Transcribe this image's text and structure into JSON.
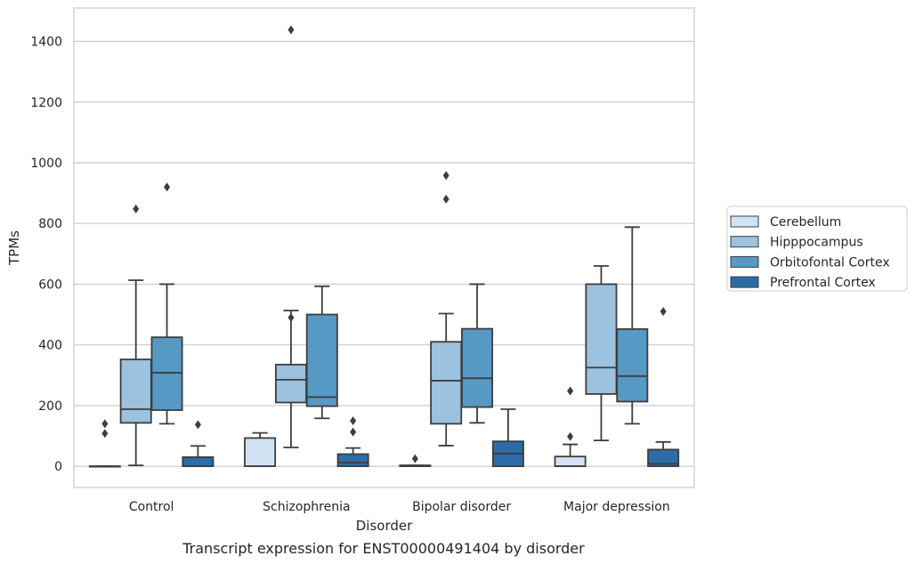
{
  "chart_data": {
    "type": "boxplot",
    "xlabel": "Disorder",
    "ylabel": "TPMs",
    "caption": "Transcript expression for ENST00000491404 by disorder",
    "ylim": [
      -70,
      1510
    ],
    "yticks": [
      0,
      200,
      400,
      600,
      800,
      1000,
      1200,
      1400
    ],
    "grid": "horizontal",
    "legend_position": "right",
    "categories": [
      "Control",
      "Schizophrenia",
      "Bipolar disorder",
      "Major depression"
    ],
    "series": [
      {
        "name": "Cerebellum",
        "color": "#d1e2f2",
        "boxes": [
          {
            "whisker_low": 0,
            "q1": 0,
            "median": 0,
            "q3": 0,
            "whisker_high": 0,
            "outliers": [
              140,
              108
            ]
          },
          {
            "whisker_low": 0,
            "q1": 0,
            "median": 0,
            "q3": 93,
            "whisker_high": 110,
            "outliers": []
          },
          {
            "whisker_low": 0,
            "q1": 0,
            "median": 0,
            "q3": 3,
            "whisker_high": 3,
            "outliers": [
              25
            ]
          },
          {
            "whisker_low": 0,
            "q1": 0,
            "median": 0,
            "q3": 32,
            "whisker_high": 72,
            "outliers": [
              248,
              98
            ]
          }
        ]
      },
      {
        "name": "Hipppocampus",
        "color": "#9bc2de",
        "boxes": [
          {
            "whisker_low": 3,
            "q1": 143,
            "median": 188,
            "q3": 352,
            "whisker_high": 613,
            "outliers": [
              848
            ]
          },
          {
            "whisker_low": 62,
            "q1": 210,
            "median": 285,
            "q3": 335,
            "whisker_high": 513,
            "outliers": [
              490,
              1438
            ]
          },
          {
            "whisker_low": 68,
            "q1": 140,
            "median": 282,
            "q3": 410,
            "whisker_high": 503,
            "outliers": [
              958,
              880
            ]
          },
          {
            "whisker_low": 85,
            "q1": 238,
            "median": 325,
            "q3": 600,
            "whisker_high": 660,
            "outliers": []
          }
        ]
      },
      {
        "name": "Orbitofontal Cortex",
        "color": "#5699c5",
        "boxes": [
          {
            "whisker_low": 140,
            "q1": 185,
            "median": 308,
            "q3": 425,
            "whisker_high": 600,
            "outliers": [
              920
            ]
          },
          {
            "whisker_low": 158,
            "q1": 198,
            "median": 228,
            "q3": 500,
            "whisker_high": 593,
            "outliers": []
          },
          {
            "whisker_low": 143,
            "q1": 195,
            "median": 290,
            "q3": 453,
            "whisker_high": 600,
            "outliers": []
          },
          {
            "whisker_low": 140,
            "q1": 213,
            "median": 297,
            "q3": 452,
            "whisker_high": 788,
            "outliers": []
          }
        ]
      },
      {
        "name": "Prefrontal Cortex",
        "color": "#2c6ca8",
        "boxes": [
          {
            "whisker_low": 0,
            "q1": 0,
            "median": 0,
            "q3": 30,
            "whisker_high": 67,
            "outliers": [
              137
            ]
          },
          {
            "whisker_low": 0,
            "q1": 0,
            "median": 12,
            "q3": 40,
            "whisker_high": 60,
            "outliers": [
              150,
              113
            ]
          },
          {
            "whisker_low": 0,
            "q1": 0,
            "median": 42,
            "q3": 82,
            "whisker_high": 188,
            "outliers": []
          },
          {
            "whisker_low": 0,
            "q1": 0,
            "median": 8,
            "q3": 55,
            "whisker_high": 80,
            "outliers": [
              510
            ]
          }
        ]
      }
    ]
  }
}
